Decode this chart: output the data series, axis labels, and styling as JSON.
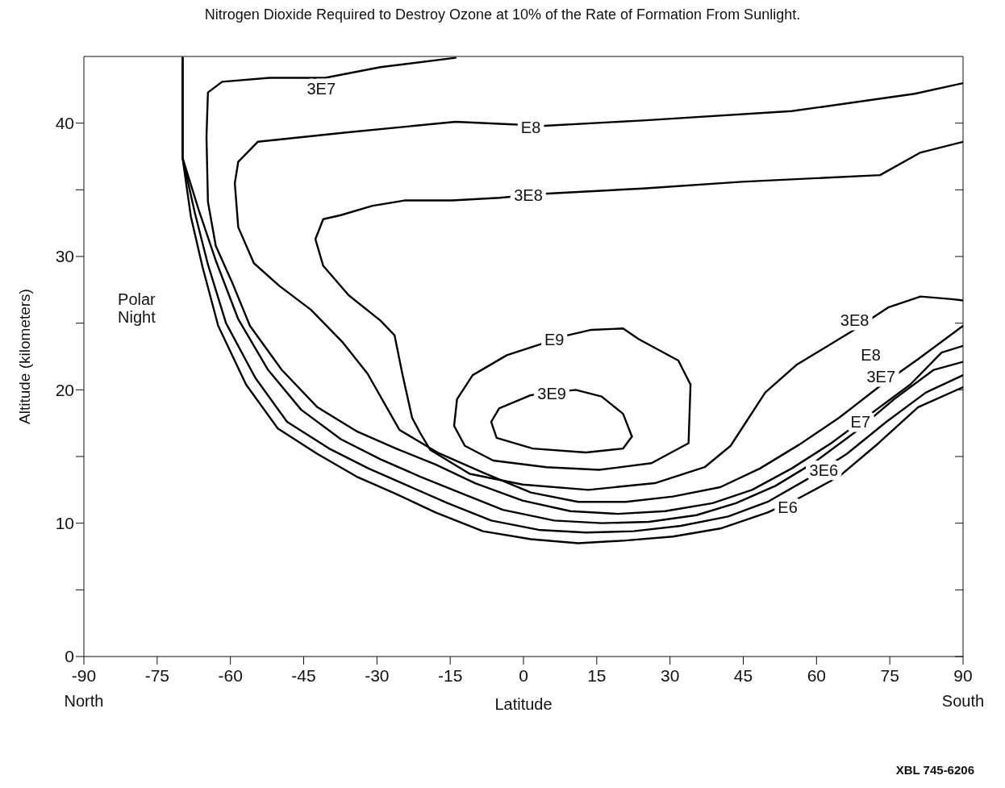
{
  "chart_data": {
    "type": "line",
    "title": "Nitrogen Dioxide Required to Destroy Ozone at 10% of the Rate of Formation From Sunlight.",
    "xlabel": "Latitude",
    "ylabel": "Altitude (kilometers)",
    "xlim": [
      -90,
      90
    ],
    "xticks": [
      -90,
      -75,
      -60,
      -45,
      -30,
      -15,
      0,
      15,
      30,
      45,
      60,
      75,
      90
    ],
    "ylim": [
      0,
      45
    ],
    "yticks": [
      0,
      {
        "value": 5,
        "label": null
      },
      10,
      {
        "value": 15,
        "label": null
      },
      20,
      {
        "value": 25,
        "label": null
      },
      30,
      {
        "value": 35,
        "label": null
      },
      40
    ],
    "grid": false,
    "legend": false,
    "marker": "none",
    "line_style": "solid",
    "series": [
      {
        "name": "E6",
        "color": "#000000",
        "x": [
          -69.8,
          -69.8,
          -68.1,
          -65.7,
          -62.5,
          -56.8,
          -50.3,
          -42.2,
          -34.2,
          -26.1,
          -18.0,
          -8.3,
          1.5,
          11.2,
          20.9,
          30.6,
          40.3,
          50.0,
          56.5,
          64.6,
          72.7,
          80.8,
          90
        ],
        "values": [
          44.9,
          37.4,
          33.0,
          29.2,
          24.8,
          20.4,
          17.1,
          15.2,
          13.5,
          12.2,
          10.8,
          9.4,
          8.8,
          8.5,
          8.7,
          9.0,
          9.6,
          10.8,
          11.9,
          13.5,
          16.0,
          18.7,
          20.2
        ]
      },
      {
        "name": "3E6",
        "color": "#000000",
        "x": [
          -69.8,
          -69.8,
          -67.3,
          -64.6,
          -60.9,
          -54.9,
          -48.4,
          -39.8,
          -31.7,
          -23.6,
          -15.5,
          -6.6,
          3.1,
          12.8,
          22.5,
          32.2,
          41.9,
          50.0,
          58.1,
          66.2,
          74.3,
          82.4,
          90
        ],
        "values": [
          44.9,
          37.4,
          33.3,
          29.4,
          25.0,
          20.9,
          17.6,
          15.6,
          14.1,
          12.8,
          11.5,
          10.2,
          9.5,
          9.3,
          9.4,
          9.8,
          10.5,
          11.6,
          13.3,
          15.2,
          17.6,
          19.8,
          21.1
        ]
      },
      {
        "name": "E7",
        "color": "#000000",
        "x": [
          -69.8,
          -69.8,
          -66.5,
          -63.0,
          -58.4,
          -52.3,
          -45.5,
          -37.4,
          -29.3,
          -21.2,
          -13.1,
          -4.2,
          6.3,
          16.0,
          25.7,
          35.4,
          43.5,
          51.6,
          59.7,
          67.8,
          75.9,
          84.0,
          90
        ],
        "values": [
          44.9,
          37.4,
          33.5,
          29.7,
          25.3,
          21.5,
          18.5,
          16.3,
          14.8,
          13.5,
          12.3,
          11.0,
          10.2,
          10.0,
          10.1,
          10.6,
          11.5,
          12.8,
          14.6,
          16.8,
          19.3,
          21.5,
          22.1
        ]
      },
      {
        "name": "3E7",
        "color": "#000000",
        "x": [
          -13.9,
          -29.3,
          -40.6,
          -52.0,
          -61.7,
          -64.6,
          -64.9,
          -64.6,
          -63.0,
          -59.7,
          -56.0,
          -49.5,
          -42.2,
          -34.2,
          -26.1,
          -18.0,
          -9.9,
          -0.2,
          9.6,
          19.3,
          29.0,
          38.7,
          46.8,
          54.9,
          63.0,
          71.1,
          79.2,
          85.6,
          90
        ],
        "values": [
          44.9,
          44.2,
          43.4,
          43.4,
          43.1,
          42.3,
          39.0,
          34.1,
          30.8,
          28.1,
          24.8,
          21.5,
          18.7,
          16.9,
          15.6,
          14.4,
          13.0,
          11.7,
          10.9,
          10.7,
          10.9,
          11.5,
          12.5,
          14.1,
          16.0,
          18.2,
          20.4,
          22.8,
          23.3
        ]
      },
      {
        "name": "E8",
        "color": "#000000",
        "x": [
          90,
          80.1,
          54.9,
          24.4,
          4.2,
          -13.9,
          -36.3,
          -54.4,
          -58.4,
          -59.1,
          -58.4,
          -55.2,
          -50.0,
          -43.5,
          -37.1,
          -31.9,
          -25.4,
          -17.6,
          -8.3,
          1.5,
          11.2,
          20.9,
          30.6,
          40.3,
          48.4,
          56.5,
          64.6,
          72.7,
          80.8,
          90
        ],
        "values": [
          43.0,
          42.2,
          40.9,
          40.2,
          39.8,
          40.1,
          39.3,
          38.6,
          37.1,
          35.5,
          32.2,
          29.5,
          27.8,
          26.0,
          23.6,
          21.2,
          17.0,
          15.3,
          13.8,
          12.3,
          11.6,
          11.6,
          12.0,
          12.7,
          14.1,
          15.9,
          17.9,
          20.2,
          22.3,
          24.8
        ]
      },
      {
        "name": "3E8",
        "color": "#000000",
        "x": [
          90,
          81.3,
          73.0,
          44.7,
          24.4,
          4.2,
          -4.9,
          -14.7,
          -24.4,
          -30.9,
          -37.4,
          -41.0,
          -42.6,
          -41.0,
          -35.8,
          -29.3,
          -26.4,
          -24.8,
          -22.8,
          -21.2,
          -19.1,
          -11.0,
          -0.2,
          13.3,
          26.9,
          37.1,
          42.4,
          45.6,
          49.5,
          56.0,
          67.3,
          74.8,
          81.3,
          87.7,
          90
        ],
        "values": [
          38.6,
          37.8,
          36.1,
          35.6,
          35.1,
          34.7,
          34.4,
          34.2,
          34.2,
          33.8,
          33.1,
          32.8,
          31.3,
          29.3,
          27.1,
          25.2,
          24.1,
          21.2,
          17.9,
          16.8,
          15.5,
          13.7,
          12.9,
          12.5,
          13.0,
          14.2,
          15.8,
          17.6,
          19.8,
          21.9,
          24.4,
          26.2,
          27.0,
          26.8,
          26.7
        ]
      },
      {
        "name": "E9",
        "color": "#000000",
        "x": [
          -14.2,
          -13.6,
          -10.4,
          -3.4,
          4.2,
          9.1,
          13.9,
          20.4,
          23.6,
          31.7,
          34.2
        ],
        "values": [
          17.3,
          19.3,
          21.1,
          22.6,
          23.5,
          24.1,
          24.5,
          24.6,
          23.8,
          22.2,
          20.4
        ]
      },
      {
        "color": "#000000",
        "x": [
          -14.2,
          -12.0,
          -6.2,
          4.7,
          15.5,
          26.2,
          33.8,
          34.2
        ],
        "values": [
          17.3,
          15.8,
          14.7,
          14.2,
          14.0,
          14.5,
          16.0,
          20.4
        ]
      },
      {
        "name": "3E9",
        "color": "#000000",
        "x": [
          -6.6,
          -5.0,
          1.5,
          10.7,
          16.0,
          20.4,
          22.2
        ],
        "values": [
          17.6,
          18.6,
          19.6,
          20.0,
          19.5,
          18.2,
          16.5
        ]
      },
      {
        "color": "#000000",
        "x": [
          -6.6,
          -5.5,
          1.9,
          12.8,
          20.4,
          22.2
        ],
        "values": [
          17.6,
          16.4,
          15.6,
          15.3,
          15.6,
          16.5
        ]
      }
    ],
    "annotations": [
      "Polar Night",
      "North",
      "South",
      "XBL 745-6206"
    ]
  }
}
